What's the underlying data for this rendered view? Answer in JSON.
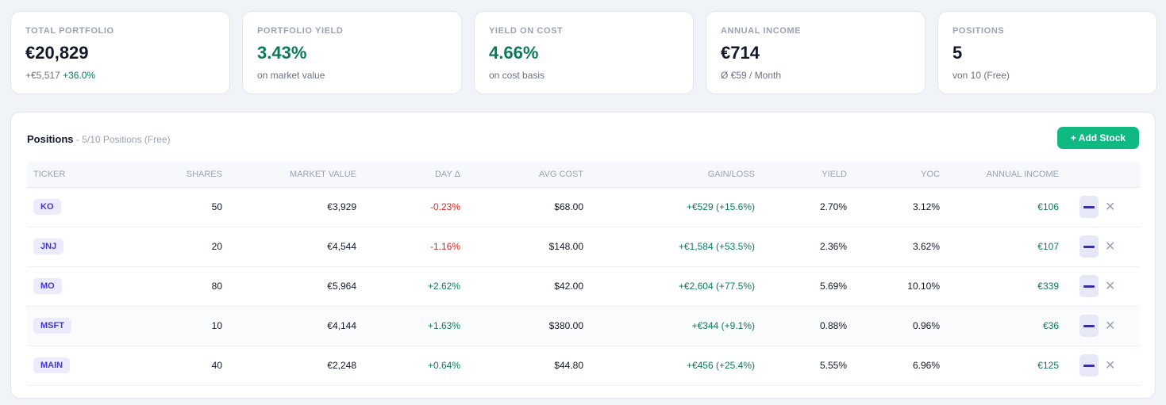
{
  "stats": [
    {
      "label": "TOTAL PORTFOLIO",
      "value": "€20,829",
      "sub": "+€5,517",
      "sub_pct": "+36.0%"
    },
    {
      "label": "PORTFOLIO YIELD",
      "value": "3.43%",
      "sub": "on market value"
    },
    {
      "label": "YIELD ON COST",
      "value": "4.66%",
      "sub": "on cost basis"
    },
    {
      "label": "ANNUAL INCOME",
      "value": "€714",
      "sub": "Ø €59 / Month"
    },
    {
      "label": "POSITIONS",
      "value": "5",
      "sub": "von 10 (Free)"
    }
  ],
  "positions": {
    "title": "Positions",
    "subtitle": " - 5/10 Positions (Free)",
    "add_label": "+ Add Stock",
    "columns": [
      "TICKER",
      "SHARES",
      "MARKET VALUE",
      "DAY Δ",
      "AVG COST",
      "GAIN/LOSS",
      "YIELD",
      "YOC",
      "ANNUAL INCOME"
    ],
    "rows": [
      {
        "ticker": "KO",
        "shares": "50",
        "market_value": "€3,929",
        "day": "-0.23%",
        "avg_cost": "$68.00",
        "gain": "+€529 (+15.6%)",
        "yield": "2.70%",
        "yoc": "3.12%",
        "income": "€106"
      },
      {
        "ticker": "JNJ",
        "shares": "20",
        "market_value": "€4,544",
        "day": "-1.16%",
        "avg_cost": "$148.00",
        "gain": "+€1,584 (+53.5%)",
        "yield": "2.36%",
        "yoc": "3.62%",
        "income": "€107"
      },
      {
        "ticker": "MO",
        "shares": "80",
        "market_value": "€5,964",
        "day": "+2.62%",
        "avg_cost": "$42.00",
        "gain": "+€2,604 (+77.5%)",
        "yield": "5.69%",
        "yoc": "10.10%",
        "income": "€339"
      },
      {
        "ticker": "MSFT",
        "shares": "10",
        "market_value": "€4,144",
        "day": "+1.63%",
        "avg_cost": "$380.00",
        "gain": "+€344 (+9.1%)",
        "yield": "0.88%",
        "yoc": "0.96%",
        "income": "€36"
      },
      {
        "ticker": "MAIN",
        "shares": "40",
        "market_value": "€2,248",
        "day": "+0.64%",
        "avg_cost": "$44.80",
        "gain": "+€456 (+25.4%)",
        "yield": "5.55%",
        "yoc": "6.96%",
        "income": "€125"
      }
    ]
  },
  "icons": {
    "edit": "edit-icon",
    "delete": "close-icon"
  },
  "colors": {
    "accent": "#10b981",
    "positive": "#0b7a5a",
    "negative": "#dc2626",
    "ticker_bg": "#eceafd"
  }
}
